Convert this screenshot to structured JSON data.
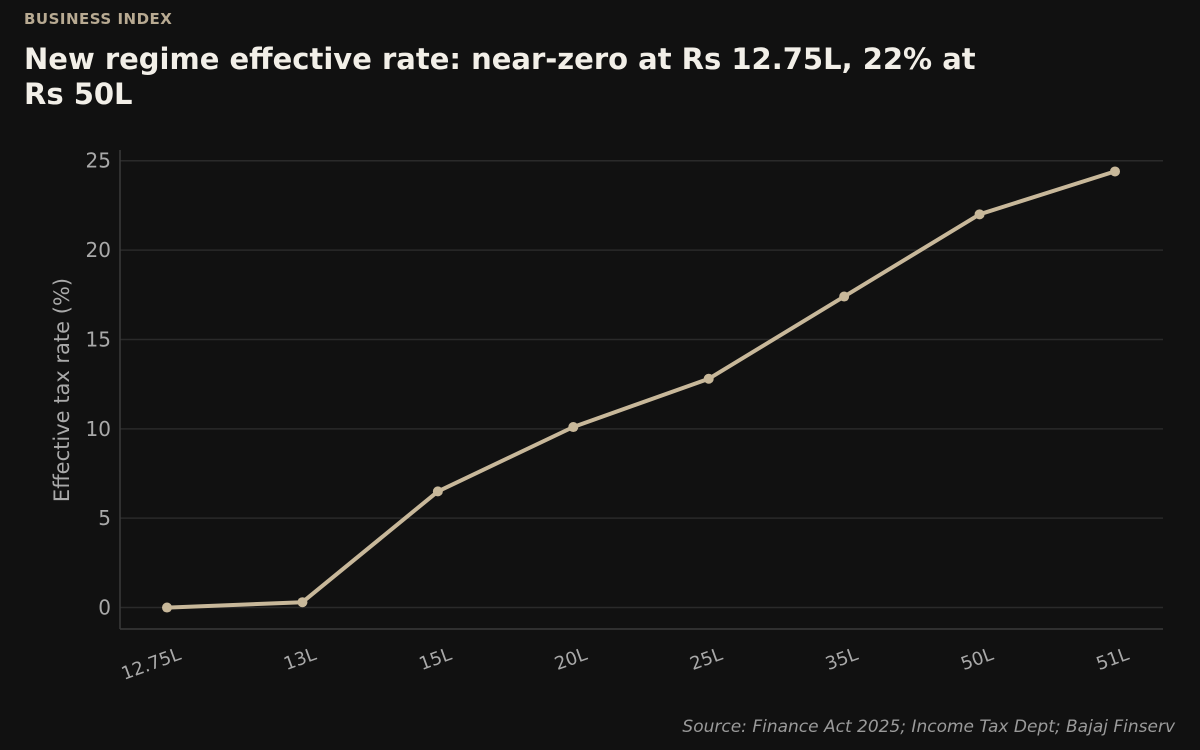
{
  "header": {
    "kicker": "BUSINESS INDEX",
    "title": "New regime effective rate: near-zero at Rs 12.75L, 22% at Rs 50L"
  },
  "footer": {
    "source": "Source: Finance Act 2025; Income Tax Dept; Bajaj Finserv"
  },
  "colors": {
    "background": "#111111",
    "line": "#c8b89a",
    "grid": "#2a2a2a",
    "axis": "#3a3a3a"
  },
  "chart_data": {
    "type": "line",
    "title": "New regime effective rate: near-zero at Rs 12.75L, 22% at Rs 50L",
    "xlabel": "",
    "ylabel": "Effective tax rate (%)",
    "categories": [
      "12.75L",
      "13L",
      "15L",
      "20L",
      "25L",
      "35L",
      "50L",
      "51L"
    ],
    "series": [
      {
        "values": [
          0.0,
          0.3,
          6.5,
          10.1,
          12.8,
          17.4,
          22.0,
          24.4
        ]
      }
    ],
    "yticks": [
      0,
      5,
      10,
      15,
      20,
      25
    ],
    "ylim": [
      -1.2,
      25.6
    ],
    "grid": true,
    "legend": "none"
  }
}
